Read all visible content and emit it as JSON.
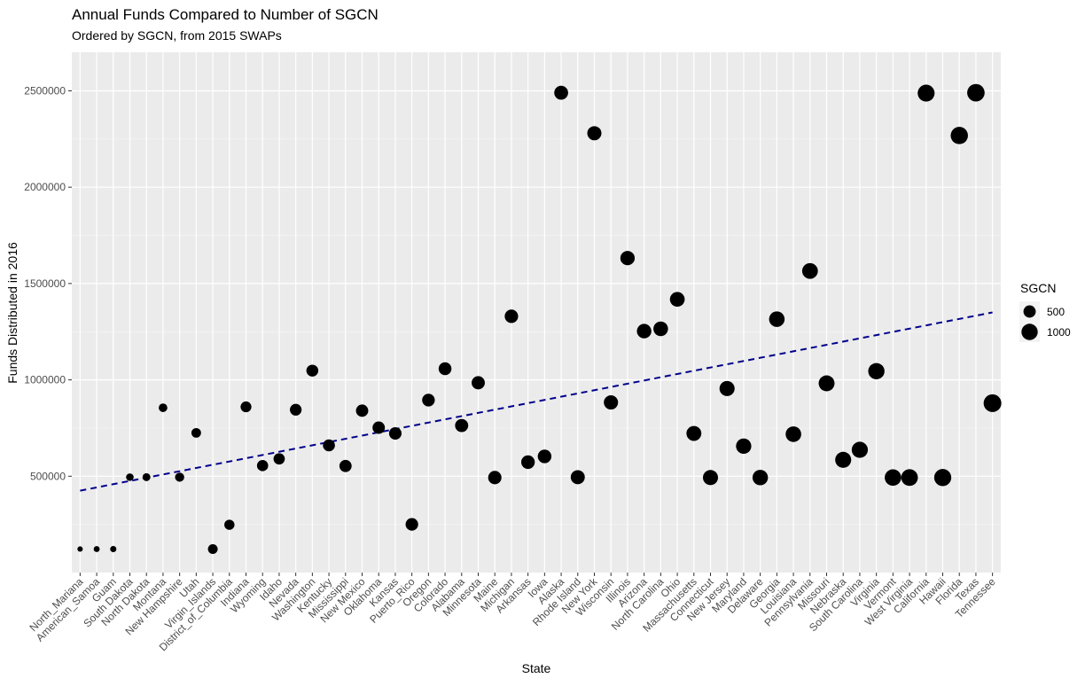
{
  "chart_data": {
    "type": "scatter",
    "title": "Annual Funds Compared to Number of SGCN",
    "subtitle": "Ordered by SGCN, from 2015 SWAPs",
    "xlabel": "State",
    "ylabel": "Funds Distributed in 2016",
    "ylim": [
      0,
      2700000
    ],
    "yticks": [
      {
        "value": 500000,
        "label": "500000"
      },
      {
        "value": 1000000,
        "label": "1000000"
      },
      {
        "value": 1500000,
        "label": "1500000"
      },
      {
        "value": 2000000,
        "label": "2000000"
      },
      {
        "value": 2500000,
        "label": "2500000"
      }
    ],
    "grid": true,
    "legend": {
      "title": "SGCN",
      "placement": "right",
      "entries": [
        {
          "label": "500",
          "value": 500
        },
        {
          "label": "1000",
          "value": 1000
        }
      ]
    },
    "point_color": "#000000",
    "trend_color": "#00008b",
    "trend": {
      "style": "dashed",
      "y_start": 425000,
      "y_end": 1350000
    },
    "categories": [
      "North_Mariana",
      "American_Samoa",
      "Guam",
      "South Dakota",
      "North Dakota",
      "Montana",
      "New Hampshire",
      "Utah",
      "Virgin_Islands",
      "District_of_Columbia",
      "Indiana",
      "Wyoming",
      "Idaho",
      "Nevada",
      "Washington",
      "Kentucky",
      "Mississippi",
      "New Mexico",
      "Oklahoma",
      "Kansas",
      "Puerto_Rico",
      "Oregon",
      "Colorado",
      "Alabama",
      "Minnesota",
      "Maine",
      "Michigan",
      "Arkansas",
      "Iowa",
      "Alaska",
      "Rhode Island",
      "New York",
      "Wisconsin",
      "Illinois",
      "Arizona",
      "North Carolina",
      "Ohio",
      "Massachusetts",
      "Connecticut",
      "New Jersey",
      "Maryland",
      "Delaware",
      "Georgia",
      "Louisiana",
      "Pennsylvania",
      "Missouri",
      "Nebraska",
      "South Carolina",
      "Virginia",
      "Vermont",
      "West Virginia",
      "California",
      "Hawaii",
      "Florida",
      "Texas",
      "Tennessee"
    ],
    "values": [
      122000,
      122000,
      122000,
      495000,
      495000,
      855000,
      495000,
      725000,
      122000,
      248000,
      860000,
      555000,
      590000,
      845000,
      1048000,
      660000,
      553000,
      840000,
      752000,
      722000,
      250000,
      895000,
      1058000,
      763000,
      985000,
      493000,
      1330000,
      573000,
      603000,
      2490000,
      495000,
      2280000,
      883000,
      1632000,
      1253000,
      1265000,
      1418000,
      722000,
      493000,
      955000,
      656000,
      493000,
      1315000,
      718000,
      1565000,
      982000,
      585000,
      637000,
      1045000,
      493000,
      493000,
      2488000,
      493000,
      2268000,
      2490000,
      879000
    ],
    "sgcn": [
      40,
      60,
      70,
      130,
      150,
      190,
      230,
      260,
      270,
      300,
      360,
      390,
      400,
      440,
      460,
      470,
      490,
      500,
      510,
      520,
      530,
      540,
      560,
      590,
      600,
      610,
      620,
      640,
      650,
      680,
      700,
      710,
      720,
      740,
      750,
      770,
      790,
      810,
      830,
      840,
      860,
      880,
      890,
      900,
      920,
      940,
      960,
      980,
      1000,
      1030,
      1060,
      1090,
      1120,
      1150,
      1180,
      1220
    ]
  }
}
